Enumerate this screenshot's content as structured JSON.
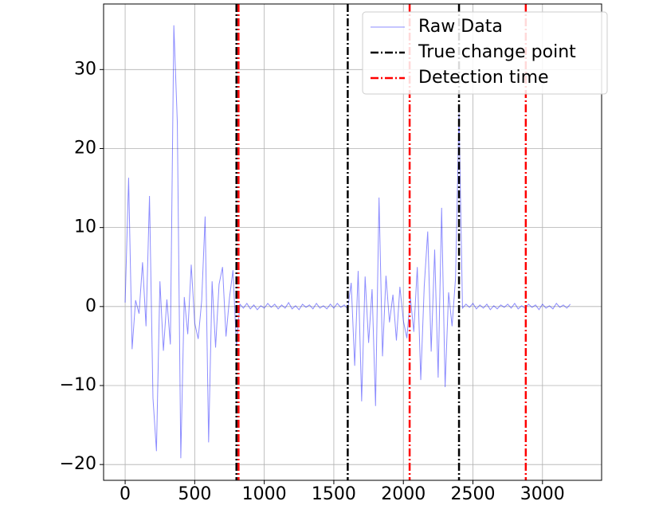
{
  "chart_data": {
    "type": "line",
    "x": [
      0,
      25,
      50,
      75,
      100,
      125,
      150,
      175,
      200,
      225,
      250,
      275,
      300,
      325,
      350,
      375,
      400,
      425,
      450,
      475,
      500,
      525,
      550,
      575,
      600,
      625,
      650,
      675,
      700,
      725,
      750,
      775,
      800,
      825,
      850,
      875,
      900,
      925,
      950,
      975,
      1000,
      1025,
      1050,
      1075,
      1100,
      1125,
      1150,
      1175,
      1200,
      1225,
      1250,
      1275,
      1300,
      1325,
      1350,
      1375,
      1400,
      1425,
      1450,
      1475,
      1500,
      1525,
      1550,
      1575,
      1600,
      1625,
      1650,
      1675,
      1700,
      1725,
      1750,
      1775,
      1800,
      1825,
      1850,
      1875,
      1900,
      1925,
      1950,
      1975,
      2000,
      2025,
      2050,
      2075,
      2100,
      2125,
      2150,
      2175,
      2200,
      2225,
      2250,
      2275,
      2300,
      2325,
      2350,
      2375,
      2400,
      2425,
      2450,
      2475,
      2500,
      2525,
      2550,
      2575,
      2600,
      2625,
      2650,
      2675,
      2700,
      2725,
      2750,
      2775,
      2800,
      2825,
      2850,
      2875,
      2900,
      2925,
      2950,
      2975,
      3000,
      3025,
      3050,
      3075,
      3100,
      3125,
      3150,
      3175,
      3200
    ],
    "series": [
      {
        "name": "Raw Data",
        "color": "#0000ff",
        "values": [
          0.5,
          16.3,
          -5.4,
          0.8,
          -0.9,
          5.6,
          -2.5,
          14.0,
          -11.6,
          -18.3,
          3.2,
          -5.6,
          0.9,
          -4.8,
          35.6,
          23.3,
          -19.2,
          1.2,
          -3.5,
          5.3,
          -2.1,
          -4.1,
          0.7,
          11.4,
          -17.2,
          3.2,
          -5.2,
          2.8,
          5.0,
          -3.8,
          1.1,
          4.6,
          -5.0,
          0.3,
          -0.2,
          0.4,
          -0.3,
          0.2,
          -0.4,
          0.1,
          -0.2,
          0.4,
          -0.1,
          0.3,
          -0.3,
          0.2,
          -0.2,
          0.5,
          -0.3,
          0.1,
          -0.4,
          0.3,
          -0.1,
          0.2,
          -0.3,
          0.4,
          -0.2,
          0.1,
          -0.3,
          0.3,
          -0.2,
          0.4,
          -0.1,
          0.2,
          -0.3,
          3.0,
          -7.5,
          4.5,
          -12.0,
          3.8,
          -4.6,
          2.2,
          -12.6,
          13.8,
          -6.3,
          3.9,
          -2.0,
          1.5,
          -4.3,
          2.5,
          -1.8,
          -4.0,
          1.2,
          -3.2,
          5.0,
          -9.3,
          2.6,
          9.5,
          -5.7,
          7.2,
          -9.0,
          12.5,
          -10.2,
          1.8,
          -2.5,
          3.6,
          24.5,
          -0.2,
          0.3,
          -0.1,
          0.4,
          -0.3,
          0.2,
          -0.2,
          0.3,
          -0.4,
          0.1,
          -0.3,
          0.2,
          -0.1,
          0.3,
          -0.2,
          0.4,
          -0.3,
          0.1,
          -0.2,
          0.3,
          -0.1,
          0.2,
          -0.4,
          0.3,
          -0.2,
          0.1,
          -0.3,
          0.4,
          -0.1,
          0.2,
          -0.2,
          0.3
        ]
      }
    ],
    "vlines": [
      {
        "name": "True change point",
        "color": "#000000",
        "x": [
          800,
          1600,
          2400
        ]
      },
      {
        "name": "Detection time",
        "color": "#ff0000",
        "x": [
          815,
          2045,
          2880
        ]
      }
    ],
    "xlim": [
      -155,
      3425
    ],
    "ylim": [
      -22,
      38.3
    ],
    "xticks": [
      0,
      500,
      1000,
      1500,
      2000,
      2500,
      3000
    ],
    "yticks": [
      {
        "value": -20,
        "label": "−20"
      },
      {
        "value": -10,
        "label": "−10"
      },
      0,
      10,
      20,
      30
    ],
    "grid": true,
    "legend": "upper right"
  }
}
